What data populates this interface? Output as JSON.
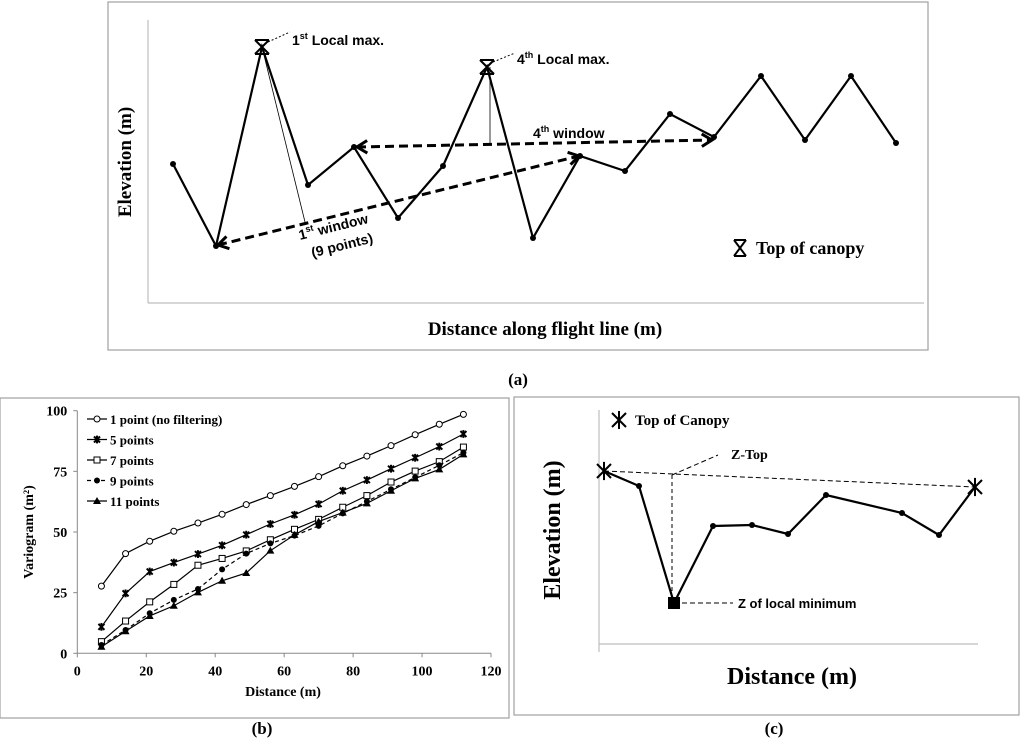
{
  "panel_a": {
    "caption": "(a)",
    "ylabel": "Elevation (m)",
    "xlabel": "Distance along flight line (m)",
    "max1": {
      "num": "1",
      "sup": "st",
      "text": " Local max."
    },
    "max4": {
      "num": "4",
      "sup": "th",
      "text": " Local max."
    },
    "window4": {
      "num": "4",
      "sup": "th",
      "text": " window"
    },
    "window1": {
      "num": "1",
      "sup": "st",
      "text": " window",
      "line2": "(9 points)"
    },
    "legend": "Top of canopy",
    "marker_icon": "asterisk-cross"
  },
  "panel_c": {
    "caption": "(c)",
    "ylabel": "Elevation (m)",
    "xlabel": "Distance (m)",
    "legend": "Top of Canopy",
    "ztop": "Z-Top",
    "zmin": "Z of local minimum",
    "marker_icon": "asterisk"
  },
  "chart_data": {
    "type": "line",
    "caption": "(b)",
    "xlabel": "Distance (m)",
    "ylabel": "Variogram (m²)",
    "xlim": [
      0,
      120
    ],
    "ylim": [
      0,
      100
    ],
    "xticks": [
      "0",
      "20",
      "40",
      "60",
      "80",
      "100",
      "120"
    ],
    "yticks": [
      "0",
      "25",
      "50",
      "75",
      "100"
    ],
    "grid": false,
    "legend_position": "top-left",
    "x": [
      7,
      14,
      21,
      28,
      35,
      42,
      49,
      56,
      63,
      70,
      77,
      84,
      91,
      98,
      105,
      112
    ],
    "series": [
      {
        "name": "1 point (no filtering)",
        "marker": "open-circle",
        "dash": "solid",
        "values": [
          27.7,
          41.1,
          46.2,
          50.3,
          53.7,
          57.3,
          61.3,
          65.0,
          68.8,
          72.8,
          77.3,
          81.3,
          85.6,
          90.1,
          94.4,
          98.5
        ]
      },
      {
        "name": "5 points",
        "marker": "star",
        "dash": "solid",
        "values": [
          10.9,
          24.7,
          33.7,
          37.4,
          40.9,
          44.5,
          48.9,
          53.3,
          57.1,
          61.5,
          67.0,
          71.4,
          76.1,
          80.6,
          85.2,
          90.4
        ]
      },
      {
        "name": "7 points",
        "marker": "open-square",
        "dash": "solid",
        "values": [
          4.8,
          13.3,
          21.2,
          28.4,
          36.3,
          39.1,
          42.2,
          46.8,
          51.1,
          55.2,
          60.2,
          65.0,
          70.6,
          75.1,
          79.0,
          85.0
        ]
      },
      {
        "name": "9 points",
        "marker": "filled-circle",
        "dash": "dashed",
        "values": [
          3.4,
          9.6,
          16.5,
          22.0,
          26.5,
          34.6,
          41.1,
          45.3,
          48.5,
          52.5,
          57.7,
          62.6,
          67.6,
          72.5,
          77.5,
          82.7
        ]
      },
      {
        "name": "11 points",
        "marker": "filled-triangle",
        "dash": "solid",
        "values": [
          2.7,
          9.1,
          15.4,
          19.6,
          25.1,
          29.9,
          33.1,
          42.3,
          48.8,
          54.3,
          58.0,
          61.8,
          67.0,
          72.1,
          75.8,
          82.0
        ]
      }
    ]
  }
}
